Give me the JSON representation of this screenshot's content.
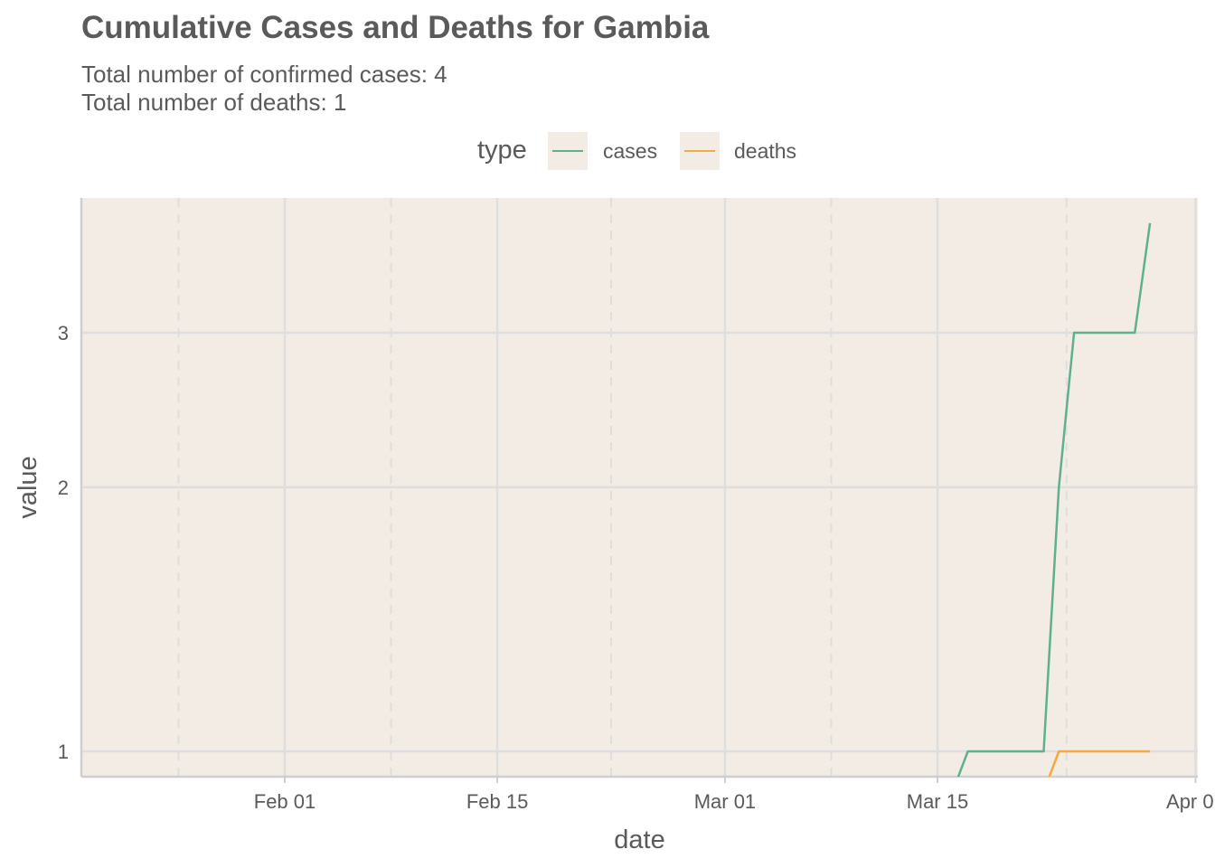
{
  "title": "Cumulative Cases and Deaths for Gambia",
  "subtitle_lines": [
    "Total number of confirmed cases: 4",
    "Total number of deaths: 1"
  ],
  "legend": {
    "title": "type",
    "items": [
      {
        "label": "cases",
        "color": "#5eb08f"
      },
      {
        "label": "deaths",
        "color": "#f5a93e"
      }
    ]
  },
  "colors": {
    "panel_background": "#f2ece5",
    "grid": "#dedede"
  },
  "chart_data": {
    "type": "line",
    "title": "Cumulative Cases and Deaths for Gambia",
    "xlabel": "date",
    "ylabel": "value",
    "y_scale": "log10",
    "xlim": [
      "2020-01-22",
      "2020-04-01"
    ],
    "ylim": [
      0.9,
      4.6
    ],
    "x_ticks": [
      {
        "date": "2020-02-01",
        "label": "Feb 01"
      },
      {
        "date": "2020-02-15",
        "label": "Feb 15"
      },
      {
        "date": "2020-03-01",
        "label": "Mar 01"
      },
      {
        "date": "2020-03-15",
        "label": "Mar 15"
      },
      {
        "date": "2020-04-01",
        "label": "Apr 01"
      }
    ],
    "y_ticks": [
      {
        "value": 1,
        "label": "1"
      },
      {
        "value": 2,
        "label": "2"
      },
      {
        "value": 3,
        "label": "3"
      }
    ],
    "series": [
      {
        "name": "cases",
        "color": "#5eb08f",
        "x": [
          "2020-03-16",
          "2020-03-17",
          "2020-03-18",
          "2020-03-19",
          "2020-03-20",
          "2020-03-21",
          "2020-03-22",
          "2020-03-23",
          "2020-03-24",
          "2020-03-25",
          "2020-03-26",
          "2020-03-27",
          "2020-03-28",
          "2020-03-29"
        ],
        "values": [
          0.9,
          1,
          1,
          1,
          1,
          1,
          1,
          2,
          3,
          3,
          3,
          3,
          3,
          4
        ]
      },
      {
        "name": "deaths",
        "color": "#f5a93e",
        "x": [
          "2020-03-22",
          "2020-03-23",
          "2020-03-24",
          "2020-03-25",
          "2020-03-26",
          "2020-03-27",
          "2020-03-28",
          "2020-03-29"
        ],
        "values": [
          0.9,
          1,
          1,
          1,
          1,
          1,
          1,
          1
        ]
      }
    ]
  }
}
